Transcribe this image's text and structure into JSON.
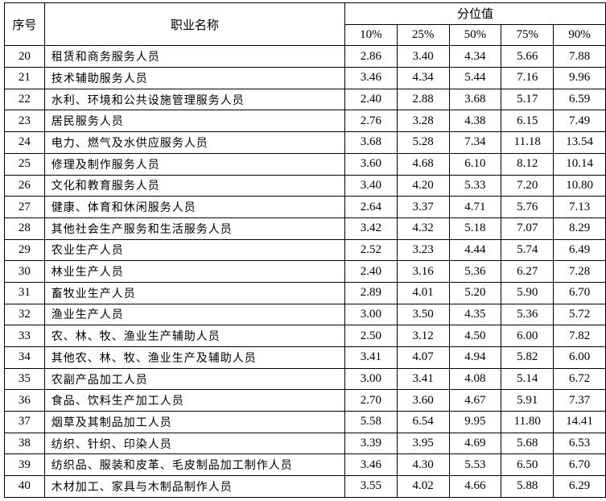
{
  "header": {
    "index": "序号",
    "occupation": "职业名称",
    "percentile_group": "分位值",
    "percentiles": [
      "10%",
      "25%",
      "50%",
      "75%",
      "90%"
    ]
  },
  "rows": [
    {
      "no": "20",
      "name": "租赁和商务服务人员",
      "v": [
        "2.86",
        "3.40",
        "4.34",
        "5.66",
        "7.88"
      ]
    },
    {
      "no": "21",
      "name": "技术辅助服务人员",
      "v": [
        "3.46",
        "4.34",
        "5.44",
        "7.16",
        "9.96"
      ]
    },
    {
      "no": "22",
      "name": "水利、环境和公共设施管理服务人员",
      "v": [
        "2.40",
        "2.88",
        "3.68",
        "5.17",
        "6.59"
      ]
    },
    {
      "no": "23",
      "name": "居民服务人员",
      "v": [
        "2.76",
        "3.28",
        "4.38",
        "6.15",
        "7.49"
      ]
    },
    {
      "no": "24",
      "name": "电力、燃气及水供应服务人员",
      "v": [
        "3.68",
        "5.28",
        "7.34",
        "11.18",
        "13.54"
      ]
    },
    {
      "no": "25",
      "name": "修理及制作服务人员",
      "v": [
        "3.60",
        "4.68",
        "6.10",
        "8.12",
        "10.14"
      ]
    },
    {
      "no": "26",
      "name": "文化和教育服务人员",
      "v": [
        "3.40",
        "4.20",
        "5.33",
        "7.20",
        "10.80"
      ]
    },
    {
      "no": "27",
      "name": "健康、体育和休闲服务人员",
      "v": [
        "2.64",
        "3.37",
        "4.71",
        "5.76",
        "7.13"
      ]
    },
    {
      "no": "28",
      "name": "其他社会生产服务和生活服务人员",
      "v": [
        "3.42",
        "4.32",
        "5.18",
        "7.07",
        "8.29"
      ]
    },
    {
      "no": "29",
      "name": "农业生产人员",
      "v": [
        "2.52",
        "3.23",
        "4.44",
        "5.74",
        "6.49"
      ]
    },
    {
      "no": "30",
      "name": "林业生产人员",
      "v": [
        "2.40",
        "3.16",
        "5.36",
        "6.27",
        "7.28"
      ]
    },
    {
      "no": "31",
      "name": "畜牧业生产人员",
      "v": [
        "2.89",
        "4.01",
        "5.20",
        "5.90",
        "6.70"
      ]
    },
    {
      "no": "32",
      "name": "渔业生产人员",
      "v": [
        "3.00",
        "3.50",
        "4.35",
        "5.36",
        "5.72"
      ]
    },
    {
      "no": "33",
      "name": "农、林、牧、渔业生产辅助人员",
      "v": [
        "2.50",
        "3.12",
        "4.50",
        "6.00",
        "7.82"
      ]
    },
    {
      "no": "34",
      "name": "其他农、林、牧、渔业生产及辅助人员",
      "v": [
        "3.41",
        "4.07",
        "4.94",
        "5.82",
        "6.00"
      ]
    },
    {
      "no": "35",
      "name": "农副产品加工人员",
      "v": [
        "3.00",
        "3.41",
        "4.08",
        "5.14",
        "6.72"
      ]
    },
    {
      "no": "36",
      "name": "食品、饮料生产加工人员",
      "v": [
        "2.70",
        "3.60",
        "4.67",
        "5.91",
        "7.37"
      ]
    },
    {
      "no": "37",
      "name": "烟草及其制品加工人员",
      "v": [
        "5.58",
        "6.54",
        "9.95",
        "11.80",
        "14.41"
      ]
    },
    {
      "no": "38",
      "name": "纺织、针织、印染人员",
      "v": [
        "3.39",
        "3.95",
        "4.69",
        "5.68",
        "6.53"
      ]
    },
    {
      "no": "39",
      "name": "纺织品、服装和皮革、毛皮制品加工制作人员",
      "v": [
        "3.46",
        "4.30",
        "5.53",
        "6.50",
        "6.70"
      ]
    },
    {
      "no": "40",
      "name": "木材加工、家具与木制品制作人员",
      "v": [
        "3.55",
        "4.02",
        "4.66",
        "5.88",
        "6.29"
      ]
    }
  ]
}
